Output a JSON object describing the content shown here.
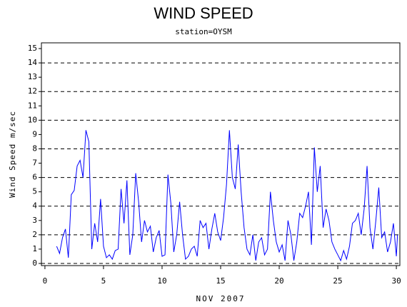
{
  "chart_data": {
    "type": "line",
    "title": "WIND SPEED",
    "subtitle": "station=OYSM",
    "x_label": "NOV 2007",
    "y_label": "Wind Speed m/sec",
    "x": [
      1,
      1.25,
      1.5,
      1.75,
      2,
      2.25,
      2.5,
      2.75,
      3,
      3.25,
      3.5,
      3.75,
      4,
      4.25,
      4.5,
      4.75,
      5,
      5.25,
      5.5,
      5.75,
      6,
      6.25,
      6.5,
      6.75,
      7,
      7.25,
      7.5,
      7.75,
      8,
      8.25,
      8.5,
      8.75,
      9,
      9.25,
      9.5,
      9.75,
      10,
      10.25,
      10.5,
      10.75,
      11,
      11.25,
      11.5,
      11.75,
      12,
      12.25,
      12.5,
      12.75,
      13,
      13.25,
      13.5,
      13.75,
      14,
      14.25,
      14.5,
      14.75,
      15,
      15.25,
      15.5,
      15.75,
      16,
      16.25,
      16.5,
      16.75,
      17,
      17.25,
      17.5,
      17.75,
      18,
      18.25,
      18.5,
      18.75,
      19,
      19.25,
      19.5,
      19.75,
      20,
      20.25,
      20.5,
      20.75,
      21,
      21.25,
      21.5,
      21.75,
      22,
      22.25,
      22.5,
      22.75,
      23,
      23.25,
      23.5,
      23.75,
      24,
      24.25,
      24.5,
      24.75,
      25,
      25.25,
      25.5,
      25.75,
      26,
      26.25,
      26.5,
      26.75,
      27,
      27.25,
      27.5,
      27.75,
      28,
      28.25,
      28.5,
      28.75,
      29,
      29.25,
      29.5,
      29.75,
      30,
      30.1
    ],
    "series": [
      {
        "color": "#0000ff",
        "values": [
          1.2,
          0.7,
          1.8,
          2.4,
          0.4,
          4.8,
          5.1,
          6.8,
          7.2,
          6.0,
          9.3,
          8.5,
          1.0,
          2.8,
          1.5,
          4.5,
          1.2,
          0.4,
          0.6,
          0.3,
          0.9,
          1.0,
          5.2,
          2.8,
          5.8,
          0.6,
          2.0,
          6.3,
          4.3,
          1.5,
          3.0,
          2.2,
          2.6,
          0.8,
          1.8,
          2.3,
          0.5,
          0.6,
          6.2,
          4.2,
          0.8,
          2.0,
          4.3,
          2.0,
          0.3,
          0.5,
          1.0,
          1.2,
          0.5,
          3.0,
          2.5,
          2.8,
          1.0,
          2.4,
          3.5,
          2.2,
          1.6,
          3.2,
          5.5,
          9.3,
          6.0,
          5.2,
          8.3,
          5.0,
          2.5,
          1.0,
          0.6,
          2.0,
          0.2,
          1.5,
          1.8,
          0.6,
          1.0,
          5.0,
          3.0,
          1.5,
          0.8,
          1.3,
          0.2,
          3.0,
          2.0,
          0.2,
          1.5,
          3.5,
          3.2,
          4.0,
          5.0,
          1.3,
          8.1,
          5.0,
          6.8,
          2.5,
          3.8,
          3.0,
          1.5,
          1.0,
          0.6,
          0.2,
          0.9,
          0.3,
          1.2,
          2.8,
          3.0,
          3.5,
          2.0,
          3.8,
          6.8,
          2.5,
          1.0,
          3.0,
          5.3,
          1.8,
          2.2,
          0.8,
          1.5,
          2.8,
          0.5,
          2.0
        ]
      }
    ],
    "xlim": [
      -0.3,
      30.3
    ],
    "xticks": [
      0,
      5,
      10,
      15,
      20,
      25,
      30
    ],
    "ylim": [
      -0.15,
      15.4
    ],
    "yticks": [
      0,
      1,
      2,
      3,
      4,
      5,
      6,
      7,
      8,
      9,
      10,
      11,
      12,
      13,
      14,
      15
    ],
    "grid": {
      "style": "dashed",
      "every": 2
    }
  }
}
